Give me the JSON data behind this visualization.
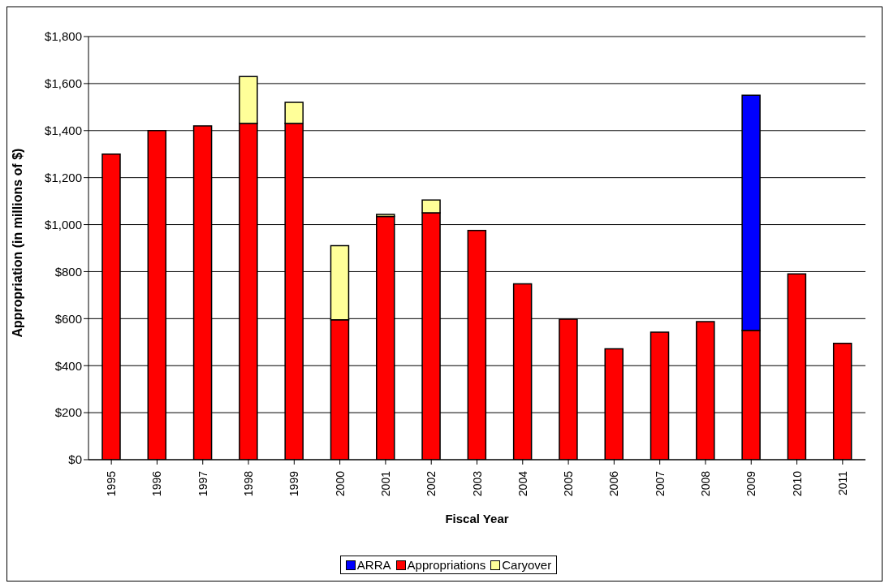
{
  "chart_data": {
    "type": "bar",
    "stacked": true,
    "xlabel": "Fiscal Year",
    "ylabel": "Appropriation (in millions of $)",
    "categories": [
      "1995",
      "1996",
      "1997",
      "1998",
      "1999",
      "2000",
      "2001",
      "2002",
      "2003",
      "2004",
      "2005",
      "2006",
      "2007",
      "2008",
      "2009",
      "2010",
      "2011"
    ],
    "series": [
      {
        "name": "Appropriations",
        "color": "#ff0000",
        "values": [
          1300,
          1400,
          1420,
          1430,
          1430,
          595,
          1035,
          1050,
          975,
          748,
          598,
          472,
          542,
          587,
          550,
          790,
          495
        ]
      },
      {
        "name": "Caryover",
        "color": "#ffff99",
        "values": [
          null,
          null,
          null,
          200,
          90,
          315,
          8,
          55,
          null,
          null,
          null,
          null,
          null,
          null,
          null,
          null,
          null
        ]
      },
      {
        "name": "ARRA",
        "color": "#0000ff",
        "values": [
          null,
          null,
          null,
          null,
          null,
          null,
          null,
          null,
          null,
          null,
          null,
          null,
          null,
          null,
          1000,
          null,
          null
        ]
      }
    ],
    "ylim": [
      0,
      1800
    ],
    "yticks": [
      {
        "value": 0,
        "label": "$0"
      },
      {
        "value": 200,
        "label": "$200"
      },
      {
        "value": 400,
        "label": "$400"
      },
      {
        "value": 600,
        "label": "$600"
      },
      {
        "value": 800,
        "label": "$800"
      },
      {
        "value": 1000,
        "label": "$1,000"
      },
      {
        "value": 1200,
        "label": "$1,200"
      },
      {
        "value": 1400,
        "label": "$1,400"
      },
      {
        "value": 1600,
        "label": "$1,600"
      },
      {
        "value": 1800,
        "label": "$1,800"
      }
    ],
    "grid": "y",
    "legend": "bottom"
  }
}
